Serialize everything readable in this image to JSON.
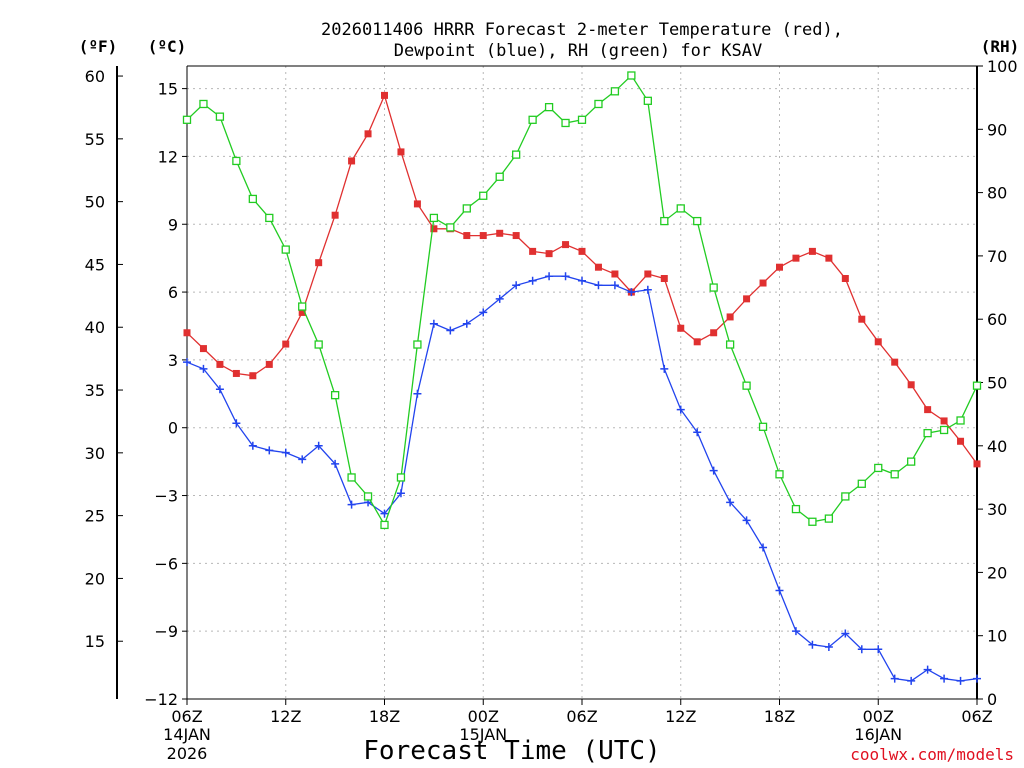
{
  "chart_data": {
    "type": "line",
    "title_lines": [
      "2026011406 HRRR Forecast 2-meter Temperature (red),",
      "Dewpoint (blue), RH (green) for KSAV"
    ],
    "xlabel": "Forecast Time (UTC)",
    "credit": "coolwx.com/models",
    "units": {
      "left_f": "(ºF)",
      "left_c": "(ºC)",
      "right_rh": "(RH)"
    },
    "x_hours": [
      0,
      1,
      2,
      3,
      4,
      5,
      6,
      7,
      8,
      9,
      10,
      11,
      12,
      13,
      14,
      15,
      16,
      17,
      18,
      19,
      20,
      21,
      22,
      23,
      24,
      25,
      26,
      27,
      28,
      29,
      30,
      31,
      32,
      33,
      34,
      35,
      36,
      37,
      38,
      39,
      40,
      41,
      42,
      43,
      44,
      45,
      46,
      47,
      48
    ],
    "x_range": [
      0,
      48
    ],
    "x_ticks": [
      {
        "hour": 0,
        "label": "06Z"
      },
      {
        "hour": 6,
        "label": "12Z"
      },
      {
        "hour": 12,
        "label": "18Z"
      },
      {
        "hour": 18,
        "label": "00Z"
      },
      {
        "hour": 24,
        "label": "06Z"
      },
      {
        "hour": 30,
        "label": "12Z"
      },
      {
        "hour": 36,
        "label": "18Z"
      },
      {
        "hour": 42,
        "label": "00Z"
      },
      {
        "hour": 48,
        "label": "06Z"
      }
    ],
    "date_labels": [
      {
        "hour": 0,
        "line1": "14JAN",
        "line2": "2026"
      },
      {
        "hour": 18,
        "line1": "15JAN",
        "line2": ""
      },
      {
        "hour": 42,
        "line1": "16JAN",
        "line2": ""
      }
    ],
    "celsius_axis": {
      "range": [
        -12,
        16
      ],
      "ticks": [
        15,
        12,
        9,
        6,
        3,
        0,
        -3,
        -6,
        -9,
        -12
      ],
      "labels": [
        "15",
        "12",
        "9",
        "6",
        "3",
        "0",
        "−3",
        "−6",
        "−9",
        "−12"
      ]
    },
    "fahrenheit_axis": {
      "ticks": [
        60,
        55,
        50,
        45,
        40,
        35,
        30,
        25,
        20,
        15
      ],
      "labels": [
        "60",
        "55",
        "50",
        "45",
        "40",
        "35",
        "30",
        "25",
        "20",
        "15"
      ]
    },
    "rh_axis": {
      "range": [
        0,
        100
      ],
      "ticks": [
        100,
        90,
        80,
        70,
        60,
        50,
        40,
        30,
        20,
        10,
        0
      ],
      "labels": [
        "100",
        "90",
        "80",
        "70",
        "60",
        "50",
        "40",
        "30",
        "20",
        "10",
        "0"
      ]
    },
    "series": [
      {
        "name": "Temperature",
        "unit": "C",
        "color": "#e03030",
        "marker": "filled-square",
        "values": [
          4.2,
          3.5,
          2.8,
          2.4,
          2.3,
          2.8,
          3.7,
          5.1,
          7.3,
          9.4,
          11.8,
          13.0,
          14.7,
          12.2,
          9.9,
          8.8,
          8.8,
          8.5,
          8.5,
          8.6,
          8.5,
          7.8,
          7.7,
          8.1,
          7.8,
          7.1,
          6.8,
          6.0,
          6.8,
          6.6,
          4.4,
          3.8,
          4.2,
          4.9,
          5.7,
          6.4,
          7.1,
          7.5,
          7.8,
          7.5,
          6.6,
          4.8,
          3.8,
          2.9,
          1.9,
          0.8,
          0.3,
          -0.6,
          -1.6
        ]
      },
      {
        "name": "Dewpoint",
        "unit": "C",
        "color": "#2244ee",
        "marker": "plus",
        "values": [
          2.9,
          2.6,
          1.7,
          0.2,
          -0.8,
          -1.0,
          -1.1,
          -1.4,
          -0.8,
          -1.6,
          -3.4,
          -3.3,
          -3.8,
          -2.9,
          1.5,
          4.6,
          4.3,
          4.6,
          5.1,
          5.7,
          6.3,
          6.5,
          6.7,
          6.7,
          6.5,
          6.3,
          6.3,
          6.0,
          6.1,
          2.6,
          0.8,
          -0.2,
          -1.9,
          -3.3,
          -4.1,
          -5.3,
          -7.2,
          -9.0,
          -9.6,
          -9.7,
          -9.1,
          -9.8,
          -9.8,
          -11.1,
          -11.2,
          -10.7,
          -11.1,
          -11.2,
          -11.1
        ]
      },
      {
        "name": "RH",
        "unit": "%",
        "color": "#22cc22",
        "marker": "open-square",
        "values": [
          91.5,
          94,
          92,
          85,
          79,
          76,
          71,
          62,
          56,
          48,
          35,
          32,
          27.5,
          35,
          56,
          76,
          74.5,
          77.5,
          79.5,
          82.5,
          86,
          91.5,
          93.5,
          91,
          91.5,
          94,
          96,
          98.5,
          94.5,
          75.5,
          77.5,
          75.5,
          65,
          56,
          49.5,
          43,
          35.5,
          30,
          28,
          28.5,
          32,
          34,
          36.5,
          35.5,
          37.5,
          42,
          42.5,
          44,
          49.5
        ]
      }
    ]
  }
}
